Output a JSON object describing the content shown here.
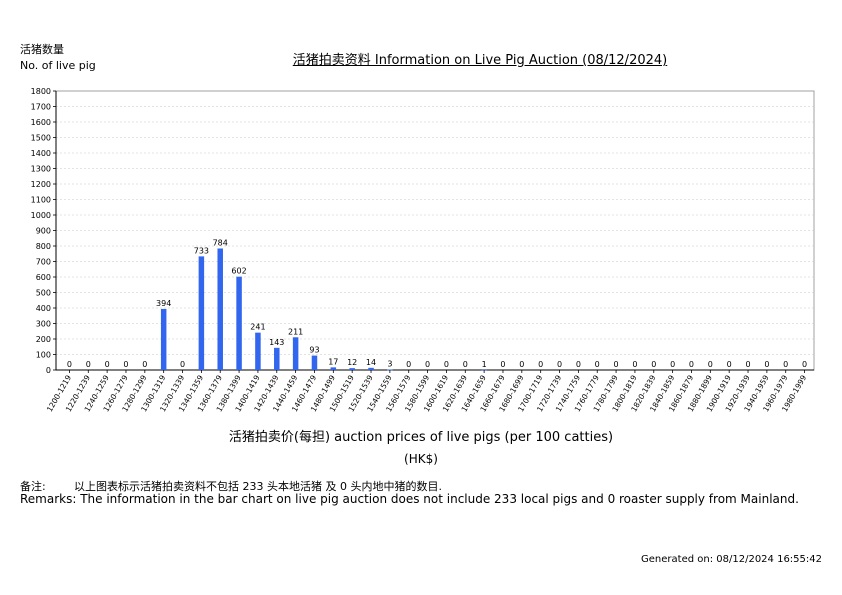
{
  "header": {
    "ylabel_cn": "活猪数量",
    "ylabel_en": "No. of live pig",
    "title": "活猪拍卖资料 Information on Live Pig Auction (08/12/2024)"
  },
  "axis": {
    "xlabel": "活猪拍卖价(每担) auction prices of live pigs (per 100 catties)",
    "unit": "(HK$)"
  },
  "remarks": {
    "cn_prefix": "备注:",
    "cn_text": "以上图表标示活猪拍卖资料不包括 233 头本地活猪 及 0 头内地中猪的数目.",
    "en_text": "Remarks: The information in the bar chart on live pig auction does not include 233 local pigs and 0 roaster supply from Mainland."
  },
  "footer": {
    "generated": "Generated on: 08/12/2024 16:55:42"
  },
  "colors": {
    "bar": "#3366ee",
    "grid": "#c8c8c8",
    "frame": "#a0a0a0"
  },
  "chart_data": {
    "type": "bar",
    "title": "活猪拍卖资料 Information on Live Pig Auction (08/12/2024)",
    "xlabel": "活猪拍卖价(每担) auction prices of live pigs (per 100 catties)",
    "ylabel": "活猪数量 No. of live pig",
    "ylim": [
      0,
      1800
    ],
    "yticks": [
      0,
      100,
      200,
      300,
      400,
      500,
      600,
      700,
      800,
      900,
      1000,
      1100,
      1200,
      1300,
      1400,
      1500,
      1600,
      1700,
      1800
    ],
    "grid": true,
    "categories": [
      "1200-1219",
      "1220-1239",
      "1240-1259",
      "1260-1279",
      "1280-1299",
      "1300-1319",
      "1320-1339",
      "1340-1359",
      "1360-1379",
      "1380-1399",
      "1400-1419",
      "1420-1439",
      "1440-1459",
      "1460-1479",
      "1480-1499",
      "1500-1519",
      "1520-1539",
      "1540-1559",
      "1560-1579",
      "1580-1599",
      "1600-1619",
      "1620-1639",
      "1640-1659",
      "1660-1679",
      "1680-1699",
      "1700-1719",
      "1720-1739",
      "1740-1759",
      "1760-1779",
      "1780-1799",
      "1800-1819",
      "1820-1839",
      "1840-1859",
      "1860-1879",
      "1880-1899",
      "1900-1919",
      "1920-1939",
      "1940-1959",
      "1960-1979",
      "1980-1999"
    ],
    "values": [
      0,
      0,
      0,
      0,
      0,
      394,
      0,
      733,
      784,
      602,
      241,
      143,
      211,
      93,
      17,
      12,
      14,
      3,
      0,
      0,
      0,
      0,
      1,
      0,
      0,
      0,
      0,
      0,
      0,
      0,
      0,
      0,
      0,
      0,
      0,
      0,
      0,
      0,
      0,
      0
    ]
  }
}
